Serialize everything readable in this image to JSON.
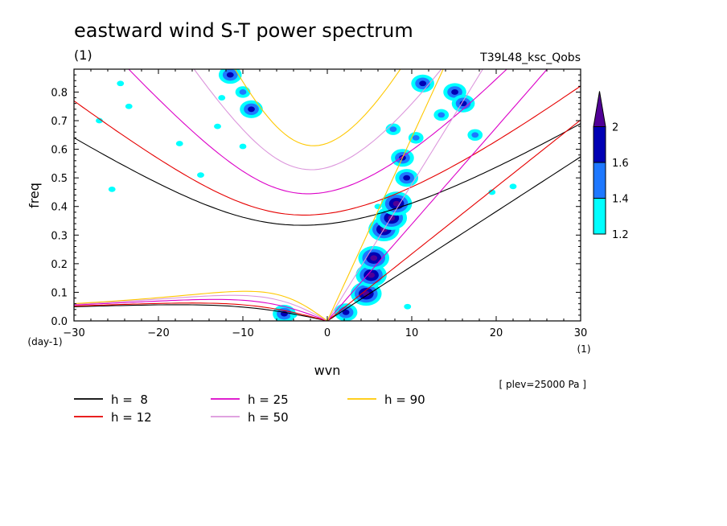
{
  "chart_data": {
    "type": "heatmap",
    "title": "eastward wind S-T power spectrum",
    "subtitle": "(1)",
    "model_label": "T39L48_ksc_Qobs",
    "xlabel": "wvn",
    "ylabel": "freq",
    "x_unit": "(1)",
    "y_unit": "(day-1)",
    "level_label": "[ plev=25000 Pa ]",
    "xlim": [
      -30,
      30
    ],
    "ylim": [
      0,
      0.88
    ],
    "xticks": [
      -30,
      -20,
      -10,
      0,
      10,
      20,
      30
    ],
    "yticks": [
      0.0,
      0.1,
      0.2,
      0.3,
      0.4,
      0.5,
      0.6,
      0.7,
      0.8
    ],
    "ytick_labels": [
      "0.0",
      "0.1",
      "0.2",
      "0.3",
      "0.4",
      "0.5",
      "0.6",
      "0.7",
      "0.8"
    ],
    "colorbar": {
      "levels": [
        1.2,
        1.4,
        1.6,
        2
      ],
      "level_labels": [
        "1.2",
        "1.4",
        "1.6",
        "2"
      ],
      "colors": [
        "#00ffff",
        "#1e78ff",
        "#0000b4",
        "#500096"
      ]
    },
    "dispersion_curves": [
      {
        "name": "h =  8",
        "h": 8,
        "color": "#000000"
      },
      {
        "name": "h = 12",
        "h": 12,
        "color": "#e60000"
      },
      {
        "name": "h = 25",
        "h": 25,
        "color": "#dc00c8"
      },
      {
        "name": "h = 50",
        "h": 50,
        "color": "#dc96dc"
      },
      {
        "name": "h = 90",
        "h": 90,
        "color": "#ffc800"
      }
    ],
    "spectral_peaks": [
      {
        "x": 4.6,
        "y": 0.095,
        "level": 2
      },
      {
        "x": 5.2,
        "y": 0.16,
        "level": 2
      },
      {
        "x": 5.5,
        "y": 0.22,
        "level": 2
      },
      {
        "x": 6.7,
        "y": 0.32,
        "level": 2
      },
      {
        "x": 7.6,
        "y": 0.36,
        "level": 2
      },
      {
        "x": 8.2,
        "y": 0.41,
        "level": 2
      },
      {
        "x": 8.9,
        "y": 0.57,
        "level": 1.6
      },
      {
        "x": 9.4,
        "y": 0.5,
        "level": 1.6
      },
      {
        "x": 11.3,
        "y": 0.83,
        "level": 1.6
      },
      {
        "x": 15.1,
        "y": 0.8,
        "level": 1.6
      },
      {
        "x": 16.1,
        "y": 0.76,
        "level": 1.6
      },
      {
        "x": -9.0,
        "y": 0.74,
        "level": 1.6
      },
      {
        "x": -11.5,
        "y": 0.86,
        "level": 1.6
      },
      {
        "x": -5.1,
        "y": 0.025,
        "level": 1.6
      },
      {
        "x": 2.2,
        "y": 0.03,
        "level": 1.6
      },
      {
        "x": 7.8,
        "y": 0.67,
        "level": 1.4
      },
      {
        "x": 10.5,
        "y": 0.64,
        "level": 1.4
      },
      {
        "x": 13.5,
        "y": 0.72,
        "level": 1.4
      },
      {
        "x": 17.5,
        "y": 0.65,
        "level": 1.4
      },
      {
        "x": -10.0,
        "y": 0.8,
        "level": 1.4
      },
      {
        "x": -12.5,
        "y": 0.78,
        "level": 1.2
      },
      {
        "x": -24.5,
        "y": 0.83,
        "level": 1.2
      },
      {
        "x": -23.5,
        "y": 0.75,
        "level": 1.2
      },
      {
        "x": -27.0,
        "y": 0.7,
        "level": 1.2
      },
      {
        "x": -13.0,
        "y": 0.68,
        "level": 1.2
      },
      {
        "x": -17.5,
        "y": 0.62,
        "level": 1.2
      },
      {
        "x": -25.5,
        "y": 0.46,
        "level": 1.2
      },
      {
        "x": -15.0,
        "y": 0.51,
        "level": 1.2
      },
      {
        "x": -10.0,
        "y": 0.61,
        "level": 1.2
      },
      {
        "x": 19.5,
        "y": 0.45,
        "level": 1.2
      },
      {
        "x": 22.0,
        "y": 0.47,
        "level": 1.2
      },
      {
        "x": 6.0,
        "y": 0.4,
        "level": 1.2
      },
      {
        "x": 9.5,
        "y": 0.05,
        "level": 1.2
      },
      {
        "x": -4.0,
        "y": 0.02,
        "level": 1.2
      }
    ]
  }
}
